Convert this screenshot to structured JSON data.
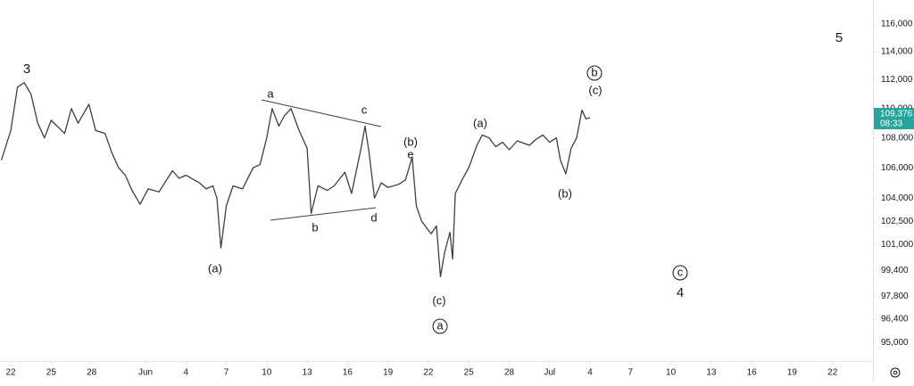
{
  "chart_data": {
    "type": "line",
    "color": "#3a3f4a",
    "log_scale": true,
    "grid": false,
    "xlim": [
      -0.8,
      64
    ],
    "ylim": [
      93900,
      117750
    ],
    "xticks": [
      {
        "value": 0,
        "label": "22"
      },
      {
        "value": 3,
        "label": "25"
      },
      {
        "value": 6,
        "label": "28"
      },
      {
        "value": 10,
        "label": "Jun"
      },
      {
        "value": 13,
        "label": "4"
      },
      {
        "value": 16,
        "label": "7"
      },
      {
        "value": 19,
        "label": "10"
      },
      {
        "value": 22,
        "label": "13"
      },
      {
        "value": 25,
        "label": "16"
      },
      {
        "value": 28,
        "label": "19"
      },
      {
        "value": 31,
        "label": "22"
      },
      {
        "value": 34,
        "label": "25"
      },
      {
        "value": 37,
        "label": "28"
      },
      {
        "value": 40,
        "label": "Jul"
      },
      {
        "value": 43,
        "label": "4"
      },
      {
        "value": 46,
        "label": "7"
      },
      {
        "value": 49,
        "label": "10"
      },
      {
        "value": 52,
        "label": "13"
      },
      {
        "value": 55,
        "label": "16"
      },
      {
        "value": 58,
        "label": "19"
      },
      {
        "value": 61,
        "label": "22"
      }
    ],
    "yticks": [
      {
        "value": 116000,
        "label": "116,000"
      },
      {
        "value": 114000,
        "label": "114,000"
      },
      {
        "value": 112000,
        "label": "112,000"
      },
      {
        "value": 110000,
        "label": "110,000"
      },
      {
        "value": 108000,
        "label": "108,000"
      },
      {
        "value": 106000,
        "label": "106,000"
      },
      {
        "value": 104000,
        "label": "104,000"
      },
      {
        "value": 102500,
        "label": "102,500"
      },
      {
        "value": 101000,
        "label": "101,000"
      },
      {
        "value": 99400,
        "label": "99,400"
      },
      {
        "value": 97800,
        "label": "97,800"
      },
      {
        "value": 96400,
        "label": "96,400"
      },
      {
        "value": 95000,
        "label": "95,000"
      }
    ],
    "x": [
      -0.7,
      0,
      0.5,
      1,
      1.5,
      2,
      2.5,
      3,
      4,
      4.5,
      5,
      5.8,
      6.3,
      7,
      7.5,
      8,
      8.5,
      9,
      9.6,
      10.2,
      11,
      12,
      12.5,
      13,
      14,
      14.5,
      15,
      15.3,
      15.6,
      16,
      16.5,
      17.2,
      18,
      18.5,
      19,
      19.4,
      19.9,
      20.3,
      20.8,
      21.4,
      22,
      22.3,
      22.8,
      23.5,
      24,
      24.8,
      25.3,
      26,
      26.3,
      26.6,
      27,
      27.5,
      28,
      28.8,
      29.3,
      29.8,
      30.1,
      30.5,
      31.2,
      31.6,
      31.9,
      32.2,
      32.6,
      32.8,
      33,
      33.5,
      34,
      34.6,
      35,
      35.5,
      36,
      36.5,
      37,
      37.6,
      38.5,
      39,
      39.5,
      40,
      40.5,
      40.8,
      41.2,
      41.6,
      42,
      42.4,
      42.7,
      43
    ],
    "values": [
      106500,
      108500,
      111500,
      111800,
      111000,
      109000,
      108000,
      109200,
      108300,
      110000,
      109000,
      110300,
      108500,
      108300,
      107000,
      106000,
      105500,
      104500,
      103600,
      104600,
      104400,
      105800,
      105300,
      105500,
      105000,
      104600,
      104800,
      104000,
      100800,
      103500,
      104800,
      104600,
      106000,
      106200,
      108000,
      110000,
      108800,
      109500,
      110000,
      108500,
      107300,
      103000,
      104800,
      104500,
      104800,
      105700,
      104300,
      107300,
      108800,
      107000,
      104000,
      105000,
      104700,
      104900,
      105200,
      106700,
      103500,
      102500,
      101700,
      102200,
      99000,
      100500,
      101800,
      100100,
      104300,
      105200,
      106000,
      107500,
      108200,
      108000,
      107400,
      107700,
      107200,
      107800,
      107500,
      107900,
      108200,
      107700,
      108000,
      106500,
      105600,
      107300,
      108000,
      109900,
      109300,
      109376
    ],
    "last_price": {
      "value": 109376,
      "label": "109,376"
    },
    "countdown": "08:33",
    "annotations": [
      "3",
      "(a)",
      "a",
      "b",
      "c",
      "d",
      "(b)",
      "e",
      "(c)",
      "(a)",
      "(b)",
      "(c)",
      "5",
      "4"
    ],
    "circled_labels": [
      "a",
      "b",
      "c"
    ]
  }
}
